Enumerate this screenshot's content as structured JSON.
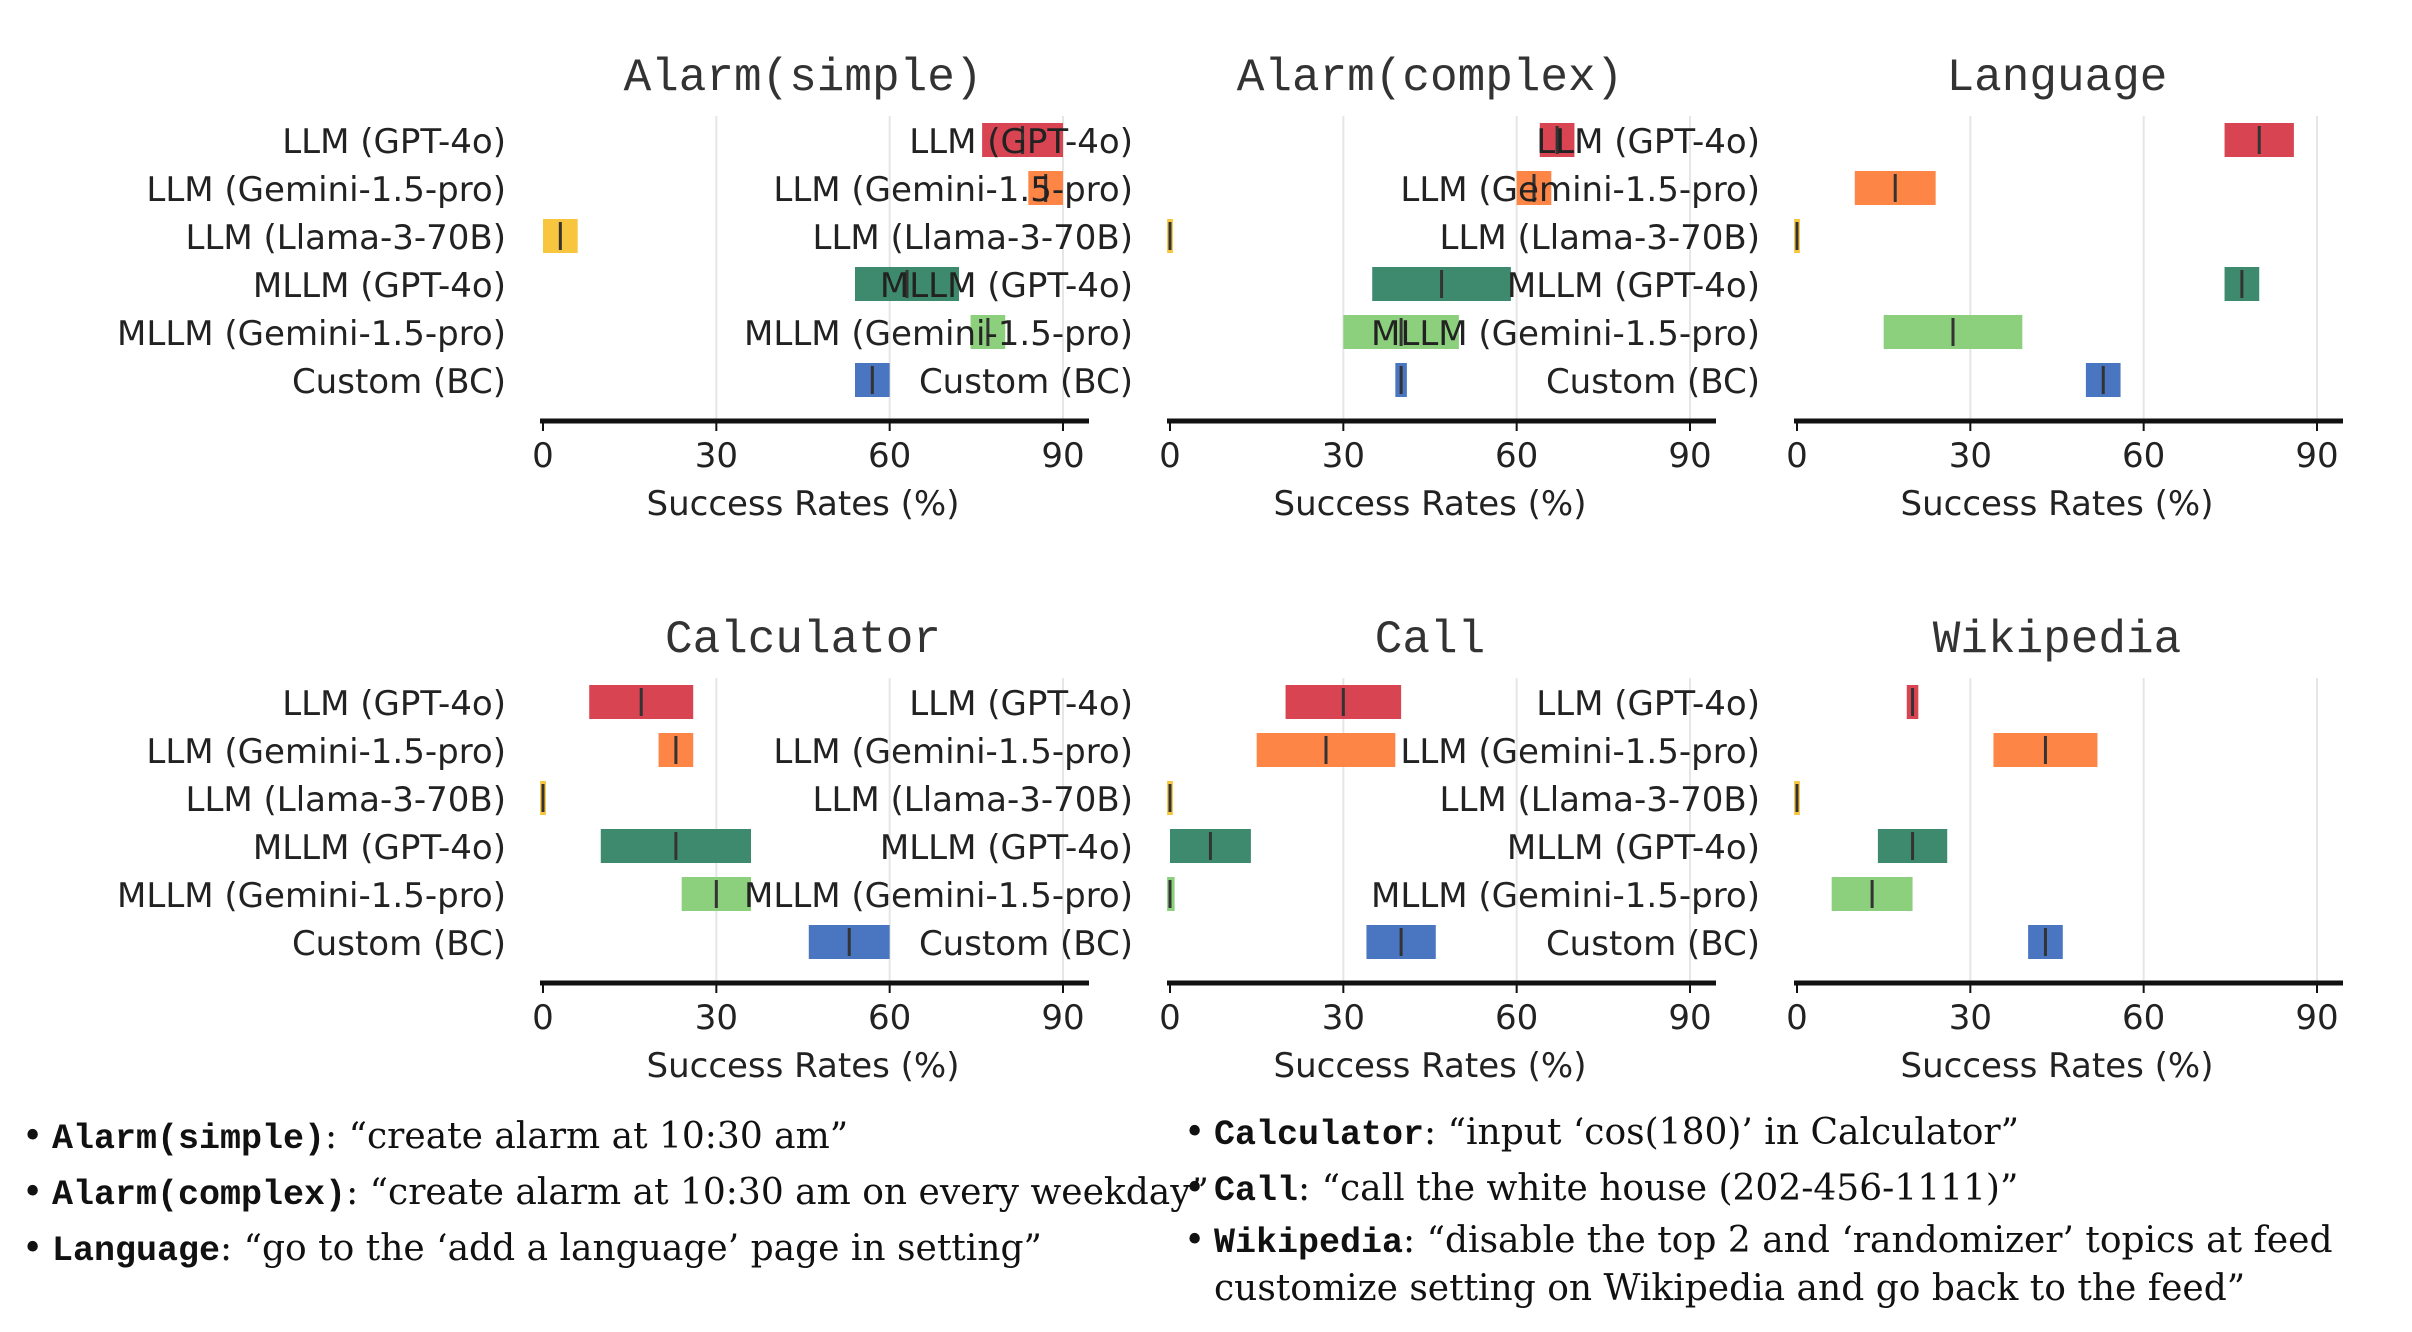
{
  "colors": {
    "llm_gpt4o": "#d94452",
    "llm_gemini": "#fd8546",
    "llm_llama": "#f8c53f",
    "mllm_gpt4o": "#3d8a6e",
    "mllm_gemini": "#8ccf7c",
    "custom_bc": "#4a76c1"
  },
  "chart_data": [
    {
      "type": "bar",
      "title": "Alarm(simple)",
      "xlabel": "Success Rates (%)",
      "xlim": [
        0,
        90
      ],
      "xticks": [
        "0",
        "30",
        "60",
        "90"
      ],
      "categories": [
        "LLM (GPT-4o)",
        "LLM (Gemini-1.5-pro)",
        "LLM (Llama-3-70B)",
        "MLLM (GPT-4o)",
        "MLLM (Gemini-1.5-pro)",
        "Custom (BC)"
      ],
      "values": [
        83,
        87,
        3,
        63,
        77,
        57
      ],
      "low": [
        76,
        84,
        0,
        54,
        74,
        54
      ],
      "high": [
        90,
        90,
        6,
        72,
        80,
        60
      ]
    },
    {
      "type": "bar",
      "title": "Alarm(complex)",
      "xlabel": "Success Rates (%)",
      "xlim": [
        0,
        90
      ],
      "xticks": [
        "0",
        "30",
        "60",
        "90"
      ],
      "categories": [
        "LLM (GPT-4o)",
        "LLM (Gemini-1.5-pro)",
        "LLM (Llama-3-70B)",
        "MLLM (GPT-4o)",
        "MLLM (Gemini-1.5-pro)",
        "Custom (BC)"
      ],
      "values": [
        67,
        63,
        0,
        47,
        40,
        40
      ],
      "low": [
        64,
        60,
        -0.5,
        35,
        30,
        39
      ],
      "high": [
        70,
        66,
        0.5,
        59,
        50,
        41
      ]
    },
    {
      "type": "bar",
      "title": "Language",
      "xlabel": "Success Rates (%)",
      "xlim": [
        0,
        90
      ],
      "xticks": [
        "0",
        "30",
        "60",
        "90"
      ],
      "categories": [
        "LLM (GPT-4o)",
        "LLM (Gemini-1.5-pro)",
        "LLM (Llama-3-70B)",
        "MLLM (GPT-4o)",
        "MLLM (Gemini-1.5-pro)",
        "Custom (BC)"
      ],
      "values": [
        80,
        17,
        0,
        77,
        27,
        53
      ],
      "low": [
        74,
        10,
        -0.5,
        74,
        15,
        50
      ],
      "high": [
        86,
        24,
        0.5,
        80,
        39,
        56
      ]
    },
    {
      "type": "bar",
      "title": "Calculator",
      "xlabel": "Success Rates (%)",
      "xlim": [
        0,
        90
      ],
      "xticks": [
        "0",
        "30",
        "60",
        "90"
      ],
      "categories": [
        "LLM (GPT-4o)",
        "LLM (Gemini-1.5-pro)",
        "LLM (Llama-3-70B)",
        "MLLM (GPT-4o)",
        "MLLM (Gemini-1.5-pro)",
        "Custom (BC)"
      ],
      "values": [
        17,
        23,
        0,
        23,
        30,
        53
      ],
      "low": [
        8,
        20,
        -0.5,
        10,
        24,
        46
      ],
      "high": [
        26,
        26,
        0.5,
        36,
        36,
        60
      ]
    },
    {
      "type": "bar",
      "title": "Call",
      "xlabel": "Success Rates (%)",
      "xlim": [
        0,
        90
      ],
      "xticks": [
        "0",
        "30",
        "60",
        "90"
      ],
      "categories": [
        "LLM (GPT-4o)",
        "LLM (Gemini-1.5-pro)",
        "LLM (Llama-3-70B)",
        "MLLM (GPT-4o)",
        "MLLM (Gemini-1.5-pro)",
        "Custom (BC)"
      ],
      "values": [
        30,
        27,
        0,
        7,
        0,
        40
      ],
      "low": [
        20,
        15,
        -0.5,
        0,
        -0.5,
        34
      ],
      "high": [
        40,
        39,
        0.5,
        14,
        0.8,
        46
      ]
    },
    {
      "type": "bar",
      "title": "Wikipedia",
      "xlabel": "Success Rates (%)",
      "xlim": [
        0,
        90
      ],
      "xticks": [
        "0",
        "30",
        "60",
        "90"
      ],
      "categories": [
        "LLM (GPT-4o)",
        "LLM (Gemini-1.5-pro)",
        "LLM (Llama-3-70B)",
        "MLLM (GPT-4o)",
        "MLLM (Gemini-1.5-pro)",
        "Custom (BC)"
      ],
      "values": [
        20,
        43,
        0,
        20,
        13,
        43
      ],
      "low": [
        19,
        34,
        -0.5,
        14,
        6,
        40
      ],
      "high": [
        21,
        52,
        0.5,
        26,
        20,
        46
      ]
    }
  ],
  "notes": {
    "left": [
      {
        "name": "Alarm(simple)",
        "text": ": “create alarm at 10:30 am”"
      },
      {
        "name": "Alarm(complex)",
        "text": ": “create alarm at 10:30 am on every weekday”"
      },
      {
        "name": "Language",
        "text": ": “go to the ‘add a language’ page in setting”"
      }
    ],
    "right": [
      {
        "name": "Calculator",
        "text": ": “input ‘cos(180)’ in Calculator”"
      },
      {
        "name": "Call",
        "text": ": “call the white house (202-456-1111)”"
      },
      {
        "name": "Wikipedia",
        "text": ": “disable the top 2 and ‘randomizer’ topics at feed customize setting on Wikipedia and go back to the feed”"
      }
    ]
  }
}
